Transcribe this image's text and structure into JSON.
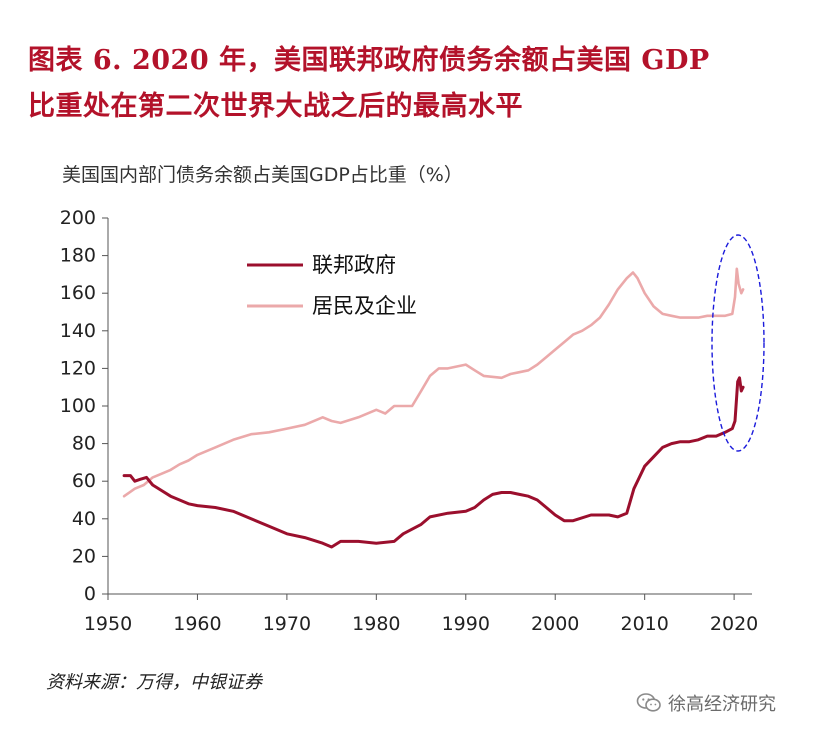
{
  "header": {
    "title_line1": "图表 6.  2020 年，美国联邦政府债务余额占美国 GDP",
    "title_line2": "比重处在第二次世界大战之后的最高水平"
  },
  "source": "资料来源：万得，中银证券",
  "watermark": {
    "text": "徐高经济研究",
    "icon": "wechat-icon"
  },
  "colors": {
    "title": "#b3122a",
    "federal": "#9b0f2d",
    "household": "#eba9aa",
    "highlight": "#1a1adb"
  },
  "chart_data": {
    "type": "line",
    "title": "美国国内部门债务余额占美国GDP占比重（%）",
    "xlabel": "",
    "ylabel": "",
    "xlim": [
      1950,
      2022
    ],
    "ylim": [
      0,
      200
    ],
    "xticks": [
      1950,
      1960,
      1970,
      1980,
      1990,
      2000,
      2010,
      2020
    ],
    "yticks": [
      0,
      20,
      40,
      60,
      80,
      100,
      120,
      140,
      160,
      180,
      200
    ],
    "legend_position": "top-left",
    "annotation": "dashed-ellipse-around-2020",
    "series": [
      {
        "name": "联邦政府",
        "color": "#9b0f2d",
        "points": [
          [
            1951.8,
            63
          ],
          [
            1952.5,
            63
          ],
          [
            1953,
            60
          ],
          [
            1953.6,
            61
          ],
          [
            1954.3,
            62
          ],
          [
            1955,
            58
          ],
          [
            1956,
            55
          ],
          [
            1957,
            52
          ],
          [
            1958,
            50
          ],
          [
            1959,
            48
          ],
          [
            1960,
            47
          ],
          [
            1962,
            46
          ],
          [
            1964,
            44
          ],
          [
            1966,
            40
          ],
          [
            1968,
            36
          ],
          [
            1970,
            32
          ],
          [
            1972,
            30
          ],
          [
            1974,
            27
          ],
          [
            1975,
            25
          ],
          [
            1976,
            28
          ],
          [
            1978,
            28
          ],
          [
            1980,
            27
          ],
          [
            1982,
            28
          ],
          [
            1983,
            32
          ],
          [
            1985,
            37
          ],
          [
            1986,
            41
          ],
          [
            1988,
            43
          ],
          [
            1990,
            44
          ],
          [
            1991,
            46
          ],
          [
            1992,
            50
          ],
          [
            1993,
            53
          ],
          [
            1994,
            54
          ],
          [
            1995,
            54
          ],
          [
            1996,
            53
          ],
          [
            1997,
            52
          ],
          [
            1998,
            50
          ],
          [
            1999,
            46
          ],
          [
            2000,
            42
          ],
          [
            2001,
            39
          ],
          [
            2002,
            39
          ],
          [
            2004,
            42
          ],
          [
            2006,
            42
          ],
          [
            2007,
            41
          ],
          [
            2008,
            43
          ],
          [
            2008.8,
            56
          ],
          [
            2010,
            68
          ],
          [
            2011,
            73
          ],
          [
            2012,
            78
          ],
          [
            2013,
            80
          ],
          [
            2014,
            81
          ],
          [
            2015,
            81
          ],
          [
            2016,
            82
          ],
          [
            2017,
            84
          ],
          [
            2018,
            84
          ],
          [
            2019,
            86
          ],
          [
            2019.8,
            88
          ],
          [
            2020.1,
            92
          ],
          [
            2020.4,
            113
          ],
          [
            2020.6,
            115
          ],
          [
            2020.8,
            108
          ],
          [
            2021,
            110
          ]
        ]
      },
      {
        "name": "居民及企业",
        "color": "#eba9aa",
        "points": [
          [
            1951.8,
            52
          ],
          [
            1953,
            56
          ],
          [
            1954,
            58
          ],
          [
            1955,
            62
          ],
          [
            1956,
            64
          ],
          [
            1957,
            66
          ],
          [
            1958,
            69
          ],
          [
            1959,
            71
          ],
          [
            1960,
            74
          ],
          [
            1962,
            78
          ],
          [
            1964,
            82
          ],
          [
            1966,
            85
          ],
          [
            1968,
            86
          ],
          [
            1970,
            88
          ],
          [
            1972,
            90
          ],
          [
            1974,
            94
          ],
          [
            1975,
            92
          ],
          [
            1976,
            91
          ],
          [
            1978,
            94
          ],
          [
            1980,
            98
          ],
          [
            1981,
            96
          ],
          [
            1982,
            100
          ],
          [
            1984,
            100
          ],
          [
            1985,
            108
          ],
          [
            1986,
            116
          ],
          [
            1987,
            120
          ],
          [
            1988,
            120
          ],
          [
            1989,
            121
          ],
          [
            1990,
            122
          ],
          [
            1991,
            119
          ],
          [
            1992,
            116
          ],
          [
            1994,
            115
          ],
          [
            1995,
            117
          ],
          [
            1996,
            118
          ],
          [
            1997,
            119
          ],
          [
            1998,
            122
          ],
          [
            1999,
            126
          ],
          [
            2000,
            130
          ],
          [
            2001,
            134
          ],
          [
            2002,
            138
          ],
          [
            2003,
            140
          ],
          [
            2004,
            143
          ],
          [
            2005,
            147
          ],
          [
            2006,
            154
          ],
          [
            2007,
            162
          ],
          [
            2008,
            168
          ],
          [
            2008.7,
            171
          ],
          [
            2009.2,
            168
          ],
          [
            2010,
            160
          ],
          [
            2011,
            153
          ],
          [
            2012,
            149
          ],
          [
            2013,
            148
          ],
          [
            2014,
            147
          ],
          [
            2015,
            147
          ],
          [
            2016,
            147
          ],
          [
            2017,
            148
          ],
          [
            2018,
            148
          ],
          [
            2019,
            148
          ],
          [
            2019.8,
            149
          ],
          [
            2020.1,
            158
          ],
          [
            2020.3,
            173
          ],
          [
            2020.5,
            165
          ],
          [
            2020.8,
            160
          ],
          [
            2021,
            162
          ]
        ]
      }
    ]
  }
}
